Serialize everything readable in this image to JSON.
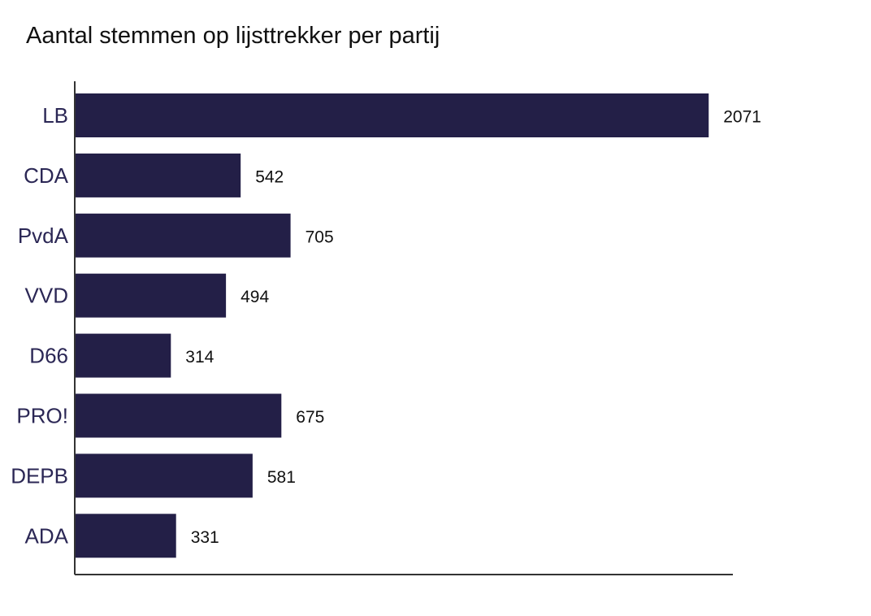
{
  "chart_data": {
    "type": "bar",
    "orientation": "horizontal",
    "title": "Aantal stemmen op lijsttrekker per partij",
    "xlabel": "",
    "ylabel": "",
    "categories": [
      "LB",
      "CDA",
      "PvdA",
      "VVD",
      "D66",
      "PRO!",
      "DEPB",
      "ADA"
    ],
    "values": [
      2071,
      542,
      705,
      494,
      314,
      675,
      581,
      331
    ],
    "xlim": [
      0,
      2150
    ],
    "grid": false,
    "legend": "none",
    "colors": {
      "bar": "#231f47",
      "category_label": "#2b2755",
      "axis": "#333333"
    }
  }
}
